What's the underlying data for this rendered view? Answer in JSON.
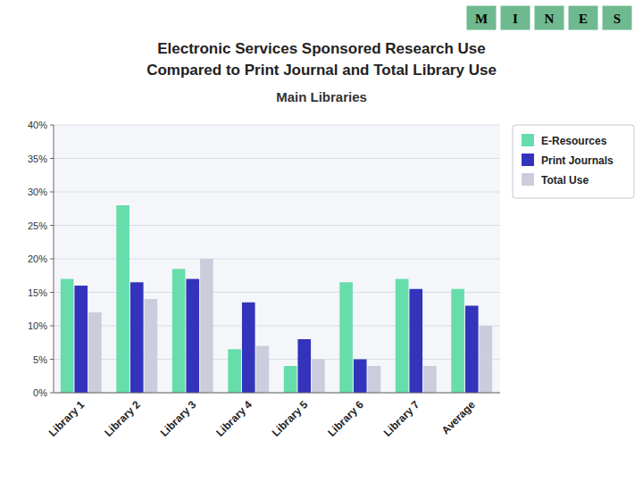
{
  "chart_data": {
    "type": "bar",
    "title": [
      "Electronic Services Sponsored Research Use",
      "Compared to Print Journal and Total Library Use"
    ],
    "subtitle": "Main Libraries",
    "annotations": [
      "M",
      "I",
      "N",
      "E",
      "S"
    ],
    "categories": [
      "Library 1",
      "Library 2",
      "Library 3",
      "Library 4",
      "Library 5",
      "Library 6",
      "Library 7",
      "Average"
    ],
    "series": [
      {
        "name": "E-Resources",
        "color": "#66DDAA",
        "values": [
          0.17,
          0.28,
          0.185,
          0.065,
          0.04,
          0.165,
          0.17,
          0.155
        ]
      },
      {
        "name": "Print Journals",
        "color": "#3333BB",
        "values": [
          0.16,
          0.165,
          0.17,
          0.135,
          0.08,
          0.05,
          0.155,
          0.13
        ]
      },
      {
        "name": "Total Use",
        "color": "#CCCCDD",
        "values": [
          0.12,
          0.14,
          0.2,
          0.07,
          0.05,
          0.04,
          0.04,
          0.1
        ]
      }
    ],
    "ylim": [
      0,
      0.4
    ],
    "yticks": [
      {
        "value": 0,
        "label": "0%"
      },
      {
        "value": 0.05,
        "label": "5%"
      },
      {
        "value": 0.1,
        "label": "10%"
      },
      {
        "value": 0.15,
        "label": "15%"
      },
      {
        "value": 0.2,
        "label": "20%"
      },
      {
        "value": 0.25,
        "label": "25%"
      },
      {
        "value": 0.3,
        "label": "30%"
      },
      {
        "value": 0.35,
        "label": "35%"
      },
      {
        "value": 0.4,
        "label": "40%"
      }
    ],
    "grid": true,
    "legend": "right"
  }
}
